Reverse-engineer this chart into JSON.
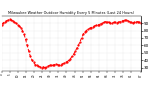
{
  "title": "Milwaukee Weather Outdoor Humidity Every 5 Minutes (Last 24 Hours)",
  "ylim": [
    25,
    100
  ],
  "yticks": [
    30,
    40,
    50,
    60,
    70,
    80,
    90
  ],
  "line_color": "#ff0000",
  "bg_color": "#ffffff",
  "grid_color": "#c8c8c8",
  "humidity": [
    88,
    90,
    92,
    93,
    94,
    95,
    94,
    93,
    91,
    90,
    88,
    86,
    84,
    80,
    75,
    68,
    60,
    52,
    45,
    40,
    37,
    34,
    33,
    32,
    31,
    30,
    31,
    30,
    31,
    32,
    33,
    34,
    33,
    34,
    35,
    34,
    33,
    34,
    35,
    36,
    37,
    38,
    40,
    42,
    45,
    48,
    52,
    56,
    60,
    65,
    70,
    75,
    78,
    80,
    82,
    83,
    84,
    85,
    86,
    87,
    88,
    88,
    89,
    90,
    91,
    92,
    92,
    91,
    90,
    90,
    91,
    91,
    90,
    91,
    92,
    93,
    93,
    94,
    94,
    93,
    92,
    91,
    90,
    91,
    92,
    92,
    91,
    90
  ],
  "figsize": [
    1.6,
    0.87
  ],
  "dpi": 100,
  "linewidth": 0.7,
  "linestyle": "--",
  "marker": ".",
  "markersize": 1.2
}
